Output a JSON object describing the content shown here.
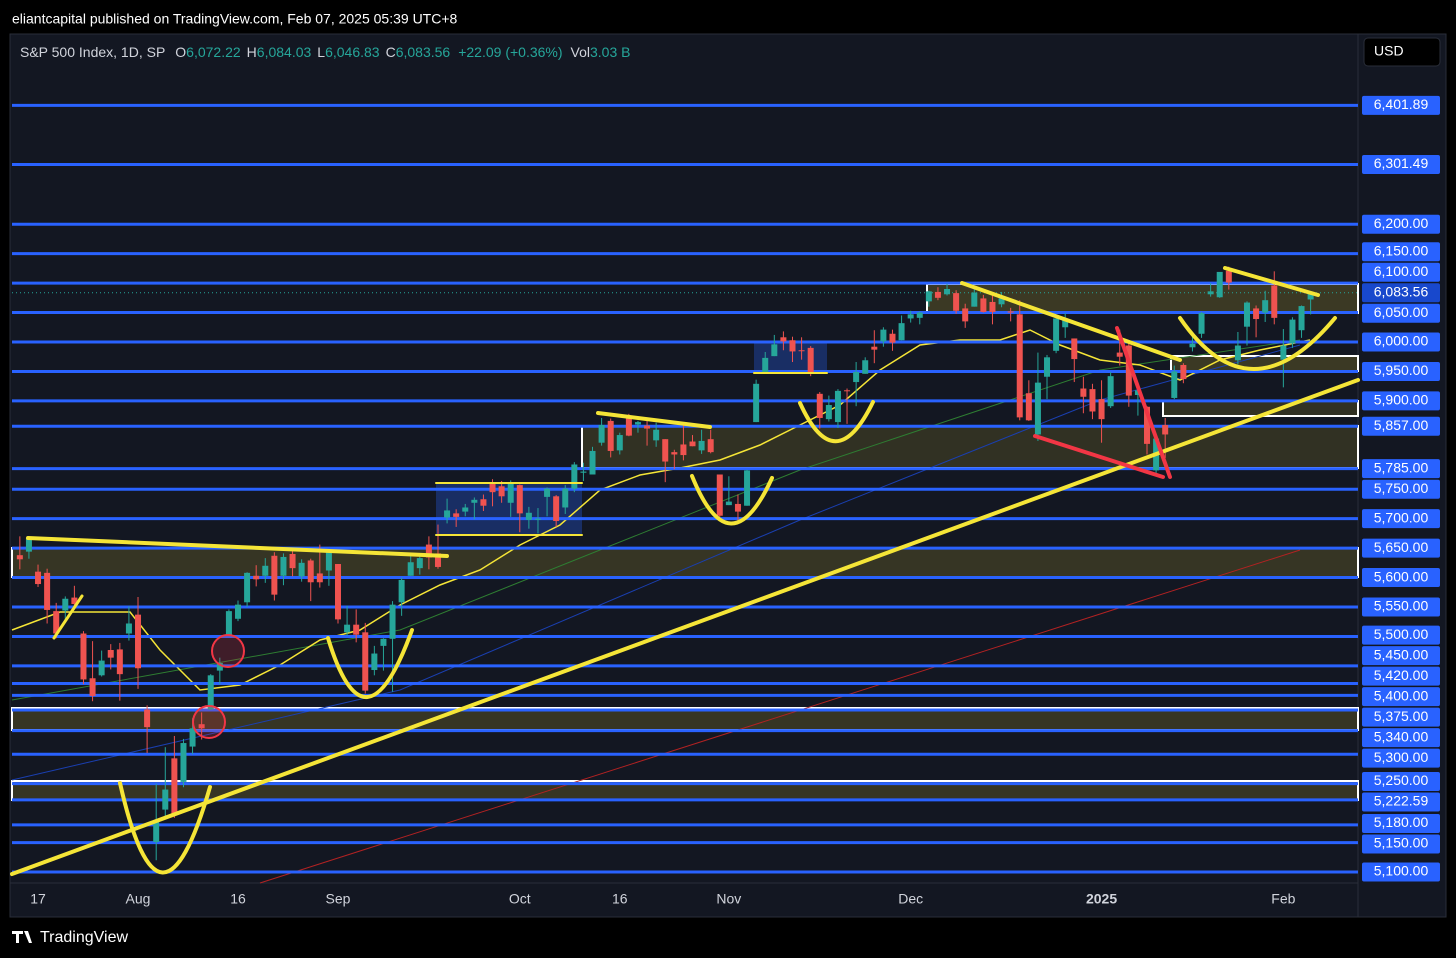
{
  "header": {
    "publisher": "eliantcapital published on TradingView.com, Feb 07, 2025 05:39 UTC+8",
    "currency": "USD",
    "footer": "TradingView"
  },
  "chart_data": {
    "type": "candlestick",
    "symbol": "S&P 500 Index, 1D, SP",
    "legend_items": [
      {
        "label": "O",
        "value": "6,072.22"
      },
      {
        "label": "H",
        "value": "6,084.03"
      },
      {
        "label": "L",
        "value": "6,046.83"
      },
      {
        "label": "C",
        "value": "6,083.56"
      }
    ],
    "change": "+22.09 (+0.36%)",
    "volume": {
      "label": "Vol",
      "value": "3.03 B"
    },
    "up_color": "#26a69a",
    "down_color": "#ef5350",
    "line_color": "#2962ff",
    "categories": [
      null,
      null,
      "17",
      null,
      null,
      null,
      null,
      null,
      null,
      null,
      null,
      null,
      null,
      "Aug",
      null,
      null,
      null,
      null,
      null,
      null,
      null,
      null,
      null,
      null,
      "16",
      null,
      null,
      null,
      null,
      null,
      null,
      null,
      null,
      null,
      null,
      "Sep",
      null,
      null,
      null,
      null,
      null,
      null,
      null,
      null,
      null,
      null,
      null,
      null,
      null,
      null,
      null,
      null,
      null,
      null,
      null,
      "Oct",
      null,
      null,
      null,
      null,
      null,
      null,
      null,
      null,
      null,
      null,
      "16",
      null,
      null,
      null,
      null,
      null,
      null,
      null,
      null,
      null,
      null,
      null,
      "Nov",
      null,
      null,
      null,
      null,
      null,
      null,
      null,
      null,
      null,
      null,
      null,
      null,
      null,
      null,
      null,
      null,
      null,
      null,
      null,
      "Dec",
      null,
      null,
      null,
      null,
      null,
      null,
      null,
      null,
      null,
      null,
      null,
      null,
      null,
      null,
      null,
      null,
      null,
      null,
      null,
      null,
      "2025",
      null,
      null,
      null,
      null,
      null,
      null,
      null,
      null,
      null,
      null,
      null,
      null,
      null,
      null,
      null,
      null,
      null,
      null,
      null,
      "Feb",
      null,
      null,
      null
    ],
    "ohlc": [
      [
        5638,
        5670,
        5614,
        5631
      ],
      [
        5644,
        5667,
        5632,
        5667
      ],
      [
        5610,
        5622,
        5584,
        5589
      ],
      [
        5608,
        5615,
        5522,
        5545
      ],
      [
        5543,
        5557,
        5497,
        5505
      ],
      [
        5544,
        5568,
        5524,
        5564
      ],
      [
        5566,
        5586,
        5551,
        5555
      ],
      [
        5505,
        5509,
        5419,
        5427
      ],
      [
        5429,
        5492,
        5390,
        5399
      ],
      [
        5434,
        5476,
        5432,
        5459
      ],
      [
        5477,
        5487,
        5444,
        5464
      ],
      [
        5478,
        5489,
        5391,
        5436
      ],
      [
        5505,
        5551,
        5493,
        5522
      ],
      [
        5537,
        5567,
        5411,
        5446
      ],
      [
        5376,
        5383,
        5302,
        5346
      ],
      [
        5151,
        5250,
        5120,
        5186
      ],
      [
        5206,
        5312,
        5193,
        5240
      ],
      [
        5293,
        5331,
        5192,
        5199
      ],
      [
        5253,
        5326,
        5244,
        5319
      ],
      [
        5313,
        5361,
        5300,
        5344
      ],
      [
        5351,
        5371,
        5325,
        5344
      ],
      [
        5376,
        5436,
        5375,
        5434
      ],
      [
        5442,
        5464,
        5419,
        5455
      ],
      [
        5501,
        5546,
        5500,
        5543
      ],
      [
        5530,
        5561,
        5526,
        5554
      ],
      [
        5558,
        5609,
        5550,
        5608
      ],
      [
        5603,
        5621,
        5585,
        5597
      ],
      [
        5603,
        5633,
        5591,
        5620
      ],
      [
        5637,
        5643,
        5561,
        5571
      ],
      [
        5603,
        5641,
        5587,
        5635
      ],
      [
        5640,
        5651,
        5602,
        5616
      ],
      [
        5602,
        5631,
        5593,
        5625
      ],
      [
        5629,
        5632,
        5560,
        5592
      ],
      [
        5607,
        5656,
        5583,
        5592
      ],
      [
        5612,
        5648,
        5586,
        5648
      ],
      [
        5623,
        5623,
        5522,
        5529
      ],
      [
        5507,
        5552,
        5501,
        5520
      ],
      [
        5520,
        5546,
        5490,
        5503
      ],
      [
        5507,
        5523,
        5403,
        5408
      ],
      [
        5443,
        5484,
        5434,
        5471
      ],
      [
        5484,
        5497,
        5442,
        5496
      ],
      [
        5496,
        5560,
        5406,
        5554
      ],
      [
        5558,
        5600,
        5535,
        5596
      ],
      [
        5603,
        5636,
        5603,
        5626
      ],
      [
        5616,
        5637,
        5605,
        5633
      ],
      [
        5656,
        5670,
        5614,
        5634
      ],
      [
        5641,
        5690,
        5615,
        5618
      ],
      [
        5702,
        5734,
        5692,
        5714
      ],
      [
        5709,
        5716,
        5686,
        5703
      ],
      [
        5712,
        5725,
        5704,
        5719
      ],
      [
        5727,
        5736,
        5699,
        5732
      ],
      [
        5733,
        5741,
        5713,
        5722
      ],
      [
        5762,
        5767,
        5721,
        5745
      ],
      [
        5755,
        5764,
        5727,
        5738
      ],
      [
        5727,
        5765,
        5703,
        5762
      ],
      [
        5757,
        5758,
        5677,
        5709
      ],
      [
        5698,
        5720,
        5683,
        5710
      ],
      [
        5698,
        5718,
        5675,
        5700
      ],
      [
        5737,
        5753,
        5704,
        5751
      ],
      [
        5738,
        5740,
        5686,
        5696
      ],
      [
        5719,
        5757,
        5708,
        5751
      ],
      [
        5751,
        5796,
        5745,
        5792
      ],
      [
        5778,
        5795,
        5764,
        5780
      ],
      [
        5775,
        5822,
        5775,
        5815
      ],
      [
        5829,
        5871,
        5824,
        5859
      ],
      [
        5866,
        5870,
        5804,
        5815
      ],
      [
        5816,
        5846,
        5809,
        5842
      ],
      [
        5873,
        5878,
        5840,
        5841
      ],
      [
        5860,
        5866,
        5846,
        5864
      ],
      [
        5858,
        5866,
        5824,
        5853
      ],
      [
        5833,
        5863,
        5822,
        5851
      ],
      [
        5835,
        5835,
        5762,
        5797
      ],
      [
        5813,
        5817,
        5784,
        5809
      ],
      [
        5826,
        5862,
        5799,
        5808
      ],
      [
        5831,
        5842,
        5823,
        5823
      ],
      [
        5816,
        5851,
        5810,
        5832
      ],
      [
        5835,
        5851,
        5811,
        5813
      ],
      [
        5775,
        5775,
        5703,
        5705
      ],
      [
        5723,
        5772,
        5723,
        5729
      ],
      [
        5725,
        5741,
        5696,
        5712
      ],
      [
        5722,
        5783,
        5722,
        5782
      ],
      [
        5864,
        5936,
        5864,
        5929
      ],
      [
        5947,
        5983,
        5947,
        5973
      ],
      [
        5976,
        6012,
        5976,
        5996
      ],
      [
        6008,
        6018,
        5986,
        6001
      ],
      [
        6003,
        6009,
        5966,
        5984
      ],
      [
        5986,
        6008,
        5970,
        5985
      ],
      [
        5990,
        5993,
        5942,
        5949
      ],
      [
        5912,
        5915,
        5853,
        5871
      ],
      [
        5869,
        5909,
        5865,
        5893
      ],
      [
        5864,
        5920,
        5854,
        5917
      ],
      [
        5918,
        5921,
        5861,
        5917
      ],
      [
        5932,
        5966,
        5891,
        5949
      ],
      [
        5946,
        5974,
        5946,
        5969
      ],
      [
        5992,
        6020,
        5964,
        5987
      ],
      [
        6001,
        6025,
        5992,
        6021
      ],
      [
        6014,
        6021,
        5985,
        5999
      ],
      [
        6003,
        6045,
        6003,
        6032
      ],
      [
        6040,
        6053,
        6033,
        6047
      ],
      [
        6041,
        6052,
        6030,
        6050
      ],
      [
        6069,
        6087,
        6060,
        6086
      ],
      [
        6085,
        6093,
        6071,
        6075
      ],
      [
        6081,
        6099,
        6079,
        6090
      ],
      [
        6083,
        6088,
        6048,
        6053
      ],
      [
        6057,
        6065,
        6024,
        6035
      ],
      [
        6060,
        6092,
        6060,
        6084
      ],
      [
        6074,
        6080,
        6050,
        6051
      ],
      [
        6068,
        6079,
        6030,
        6051
      ],
      [
        6064,
        6085,
        6059,
        6074
      ],
      [
        6052,
        6058,
        6035,
        6050
      ],
      [
        6047,
        6071,
        5867,
        5872
      ],
      [
        5913,
        5935,
        5866,
        5867
      ],
      [
        5843,
        5982,
        5832,
        5931
      ],
      [
        5941,
        5978,
        5903,
        5974
      ],
      [
        5985,
        6040,
        5981,
        6040
      ],
      [
        6025,
        6049,
        6007,
        6037
      ],
      [
        6006,
        6006,
        5932,
        5971
      ],
      [
        5921,
        5941,
        5879,
        5907
      ],
      [
        5920,
        5929,
        5869,
        5882
      ],
      [
        5903,
        5935,
        5829,
        5869
      ],
      [
        5891,
        5949,
        5888,
        5942
      ],
      [
        5982,
        6021,
        5960,
        5975
      ],
      [
        5994,
        6000,
        5890,
        5909
      ],
      [
        5910,
        5927,
        5875,
        5918
      ],
      [
        5890,
        5891,
        5809,
        5827
      ],
      [
        5782,
        5840,
        5773,
        5836
      ],
      [
        5859,
        5871,
        5803,
        5843
      ],
      [
        5905,
        5960,
        5903,
        5950
      ],
      [
        5961,
        5964,
        5930,
        5937
      ],
      [
        5991,
        6014,
        5984,
        5997
      ],
      [
        6014,
        6051,
        6007,
        6049
      ],
      [
        6081,
        6100,
        6077,
        6086
      ],
      [
        6076,
        6118,
        6075,
        6119
      ],
      [
        6121,
        6128,
        6089,
        6101
      ],
      [
        5969,
        6017,
        5962,
        5994
      ],
      [
        6026,
        6069,
        5994,
        6067
      ],
      [
        6057,
        6062,
        6008,
        6039
      ],
      [
        6050,
        6087,
        6034,
        6071
      ],
      [
        6096,
        6120,
        6030,
        6041
      ],
      [
        5970,
        6022,
        5923,
        5994
      ],
      [
        5998,
        6042,
        5990,
        6038
      ],
      [
        6020,
        6062,
        6007,
        6061
      ],
      [
        6072.22,
        6084.03,
        6046.83,
        6083.56
      ]
    ],
    "ylim": [
      5027,
      6523
    ],
    "yticks": [
      {
        "value": 6401.89,
        "label": "6,401.89"
      },
      {
        "value": 6301.49,
        "label": "6,301.49"
      },
      {
        "value": 6200,
        "label": "6,200.00"
      },
      {
        "value": 6150,
        "label": "6,150.00"
      },
      {
        "value": 6100,
        "label": "6,100.00"
      },
      {
        "value": 6050,
        "label": "6,050.00"
      },
      {
        "value": 6000,
        "label": "6,000.00"
      },
      {
        "value": 5950,
        "label": "5,950.00"
      },
      {
        "value": 5900,
        "label": "5,900.00"
      },
      {
        "value": 5857,
        "label": "5,857.00"
      },
      {
        "value": 5785,
        "label": "5,785.00"
      },
      {
        "value": 5750,
        "label": "5,750.00"
      },
      {
        "value": 5700,
        "label": "5,700.00"
      },
      {
        "value": 5650,
        "label": "5,650.00"
      },
      {
        "value": 5600,
        "label": "5,600.00"
      },
      {
        "value": 5550,
        "label": "5,550.00"
      },
      {
        "value": 5500,
        "label": "5,500.00"
      },
      {
        "value": 5450,
        "label": "5,450.00"
      },
      {
        "value": 5420,
        "label": "5,420.00"
      },
      {
        "value": 5400,
        "label": "5,400.00"
      },
      {
        "value": 5375,
        "label": "5,375.00"
      },
      {
        "value": 5340,
        "label": "5,340.00"
      },
      {
        "value": 5300,
        "label": "5,300.00"
      },
      {
        "value": 5250,
        "label": "5,250.00"
      },
      {
        "value": 5222.59,
        "label": "5,222.59"
      },
      {
        "value": 5180,
        "label": "5,180.00"
      },
      {
        "value": 5150,
        "label": "5,150.00"
      },
      {
        "value": 5100,
        "label": "5,100.00"
      }
    ],
    "last_price": {
      "value": 6083.56,
      "label": "6,083.56"
    }
  }
}
